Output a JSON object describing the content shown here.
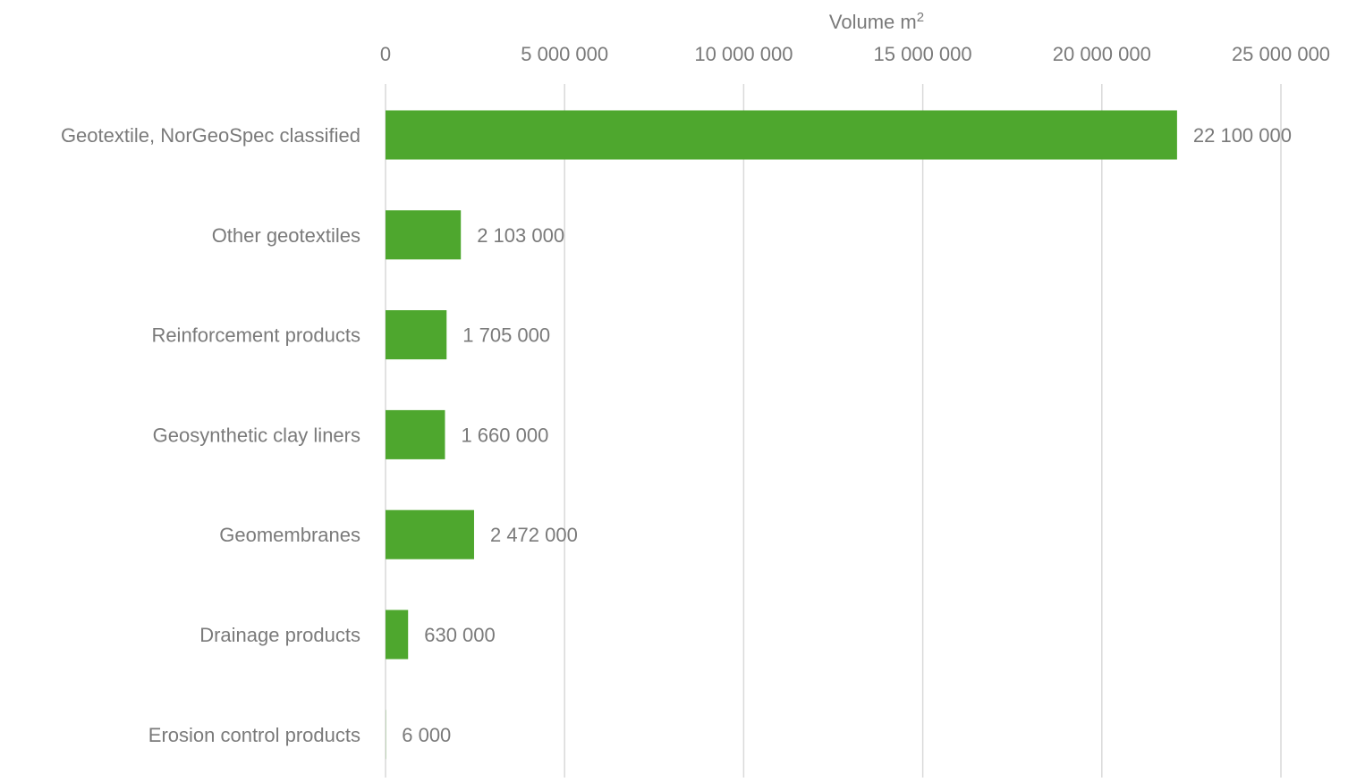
{
  "chart_data": {
    "type": "bar",
    "orientation": "horizontal",
    "xlabel": "Volume m",
    "xlabel_superscript": "2",
    "xlim": [
      0,
      25000000
    ],
    "x_ticks": [
      0,
      5000000,
      10000000,
      15000000,
      20000000,
      25000000
    ],
    "x_tick_labels": [
      "0",
      "5 000 000",
      "10 000 000",
      "15 000 000",
      "20 000 000",
      "25 000 000"
    ],
    "x_axis_position": "top",
    "grid": true,
    "bar_color": "#4ea72e",
    "categories": [
      "Geotextile, NorGeoSpec classified",
      "Other geotextiles",
      "Reinforcement products",
      "Geosynthetic clay liners",
      "Geomembranes",
      "Drainage products",
      "Erosion control products"
    ],
    "values": [
      22100000,
      2103000,
      1705000,
      1660000,
      2472000,
      630000,
      6000
    ],
    "data_labels": [
      "22 100 000",
      "2 103 000",
      "1 705 000",
      "1 660 000",
      "2 472 000",
      "630 000",
      "6 000"
    ]
  }
}
